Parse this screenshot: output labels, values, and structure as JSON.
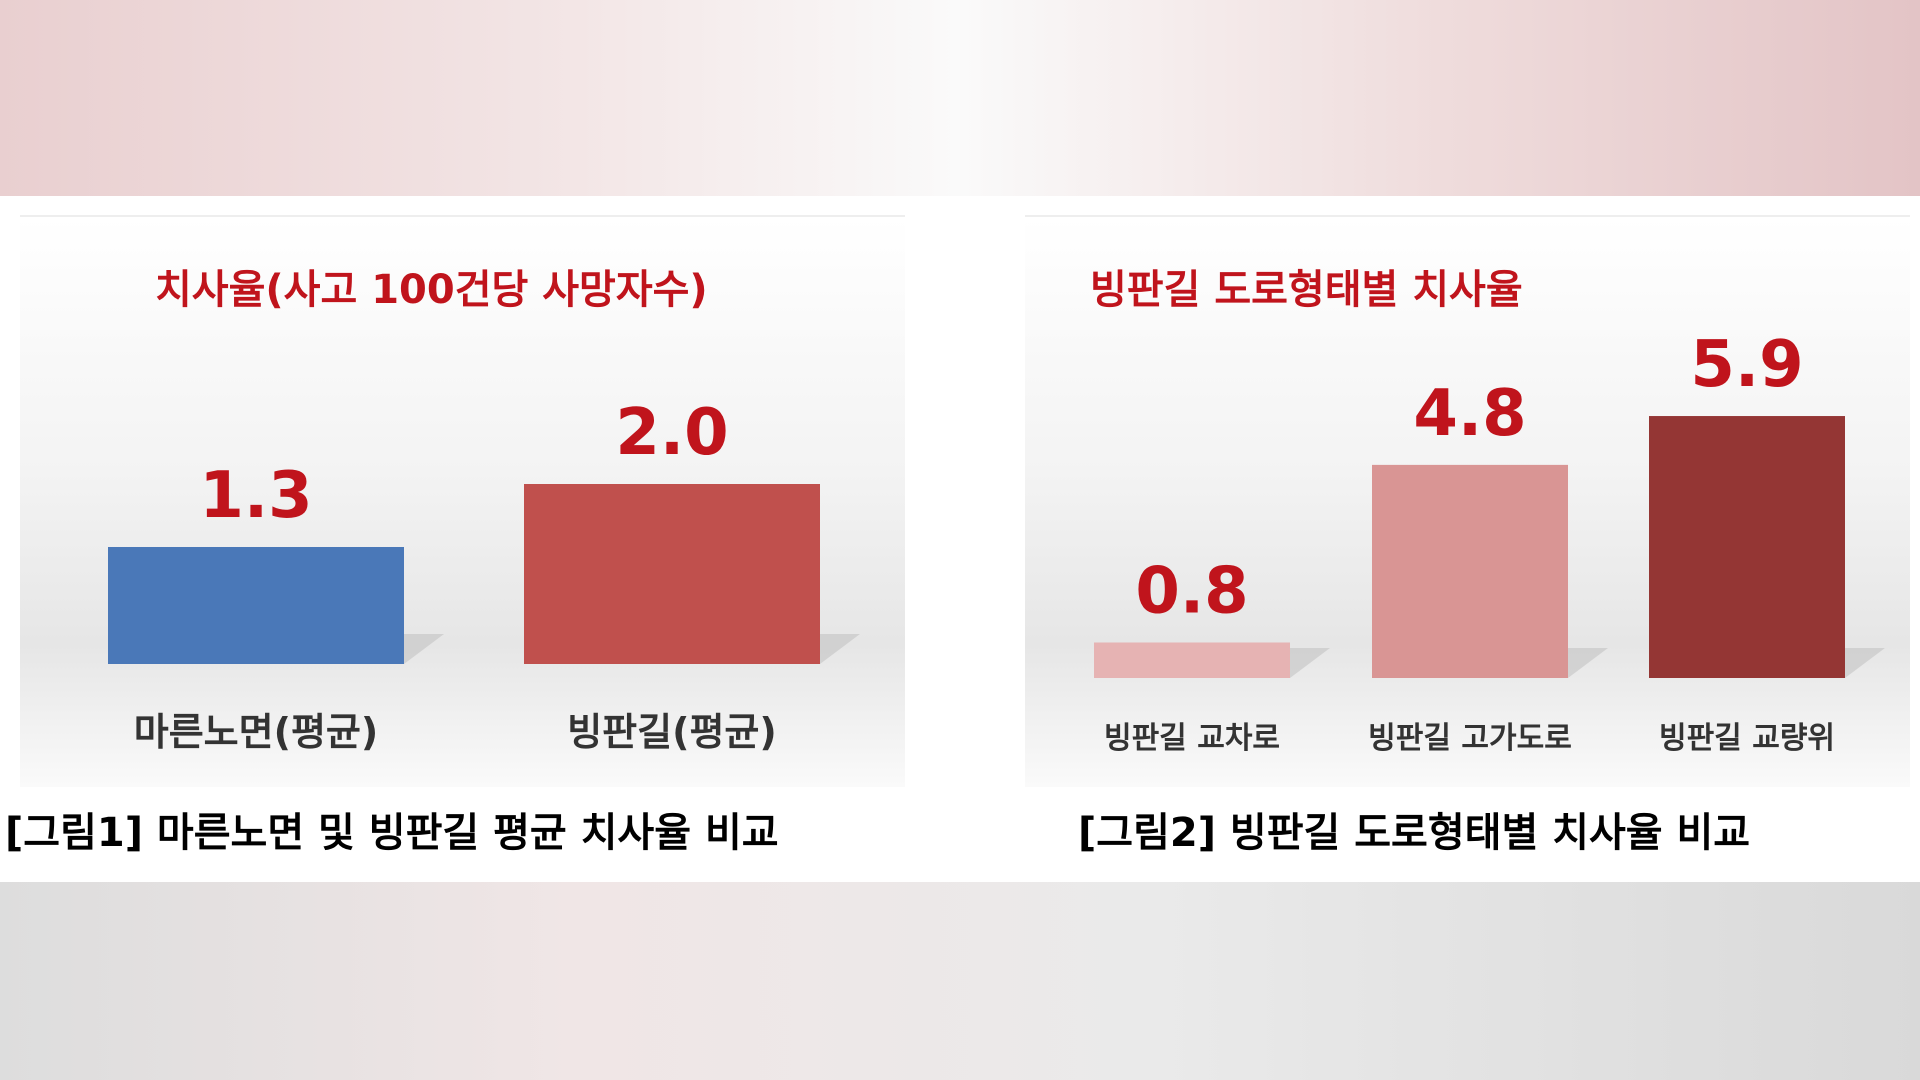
{
  "captions": [
    "[그림1] 마른노면 및 빙판길 평균 치사율 비교",
    "[그림2] 빙판길 도로형태별 치사율 비교"
  ],
  "chart_data": [
    {
      "type": "bar",
      "title": "치사율(사고 100건당 사망자수)",
      "categories": [
        "마른노면(평균)",
        "빙판길(평균)"
      ],
      "values": [
        1.3,
        2.0
      ],
      "colors": [
        "#4a78b8",
        "#c0504d"
      ]
    },
    {
      "type": "bar",
      "title": "빙판길 도로형태별 치사율",
      "categories": [
        "빙판길 교차로",
        "빙판길 고가도로",
        "빙판길 교량위"
      ],
      "values": [
        0.8,
        4.8,
        5.9
      ],
      "colors": [
        "#e6b3b3",
        "#d99594",
        "#943634"
      ]
    }
  ]
}
